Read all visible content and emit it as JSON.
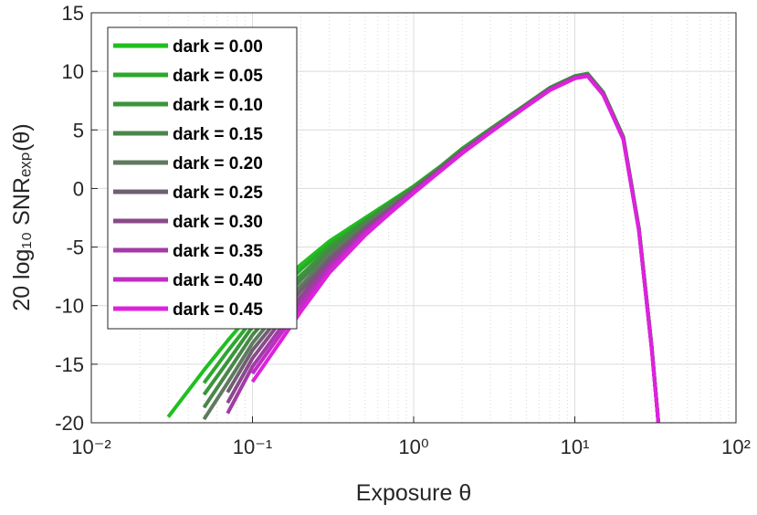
{
  "chart_data": {
    "type": "line",
    "x_label": "Exposure θ",
    "y_label": "20 log₁₀ SNRₑₓₚ(θ)",
    "x": [
      0.03,
      0.05,
      0.07,
      0.1,
      0.15,
      0.2,
      0.3,
      0.5,
      0.7,
      1,
      1.5,
      2,
      3,
      5,
      7,
      10,
      12,
      15,
      20,
      25,
      30,
      33
    ],
    "series": [
      {
        "name": "dark = 0.00",
        "color": "#1fbf1f",
        "values": [
          -19.5,
          -15.5,
          -13,
          -10.5,
          -8,
          -6.5,
          -4.5,
          -2.5,
          -1.2,
          0.2,
          2,
          3.4,
          5.1,
          7.2,
          8.6,
          9.6,
          9.8,
          8.2,
          4.4,
          -3.4,
          -13.5,
          -20
        ]
      },
      {
        "name": "dark = 0.05",
        "color": "#2ca82c",
        "values": [
          null,
          -16.6,
          -13.9,
          -11.2,
          -8.6,
          -6.9,
          -4.8,
          -2.7,
          -1.3,
          0.1,
          2,
          3.4,
          5.1,
          7.2,
          8.6,
          9.6,
          9.8,
          8.2,
          4.4,
          -3.4,
          -13.5,
          -20
        ]
      },
      {
        "name": "dark = 0.10",
        "color": "#3a953a",
        "values": [
          null,
          -17.6,
          -14.8,
          -11.8,
          -9.1,
          -7.4,
          -5.1,
          -2.8,
          -1.4,
          0.1,
          1.9,
          3.3,
          5,
          7.2,
          8.6,
          9.6,
          9.8,
          8.2,
          4.4,
          -3.4,
          -13.5,
          -20
        ]
      },
      {
        "name": "dark = 0.15",
        "color": "#4a864a",
        "values": [
          null,
          -18.7,
          -15.7,
          -12.5,
          -9.7,
          -7.8,
          -5.4,
          -3,
          -1.5,
          0,
          1.9,
          3.3,
          5,
          7.1,
          8.5,
          9.5,
          9.7,
          8.1,
          4.3,
          -3.5,
          -13.6,
          -20
        ]
      },
      {
        "name": "dark = 0.20",
        "color": "#5f7a5f",
        "values": [
          null,
          -19.7,
          -16.6,
          -13.2,
          -10.2,
          -8.3,
          -5.7,
          -3.2,
          -1.6,
          -0.1,
          1.8,
          3.2,
          5,
          7.1,
          8.5,
          9.5,
          9.7,
          8.1,
          4.3,
          -3.5,
          -13.6,
          -20
        ]
      },
      {
        "name": "dark = 0.25",
        "color": "#6f5f72",
        "values": [
          null,
          null,
          -17.4,
          -13.8,
          -10.8,
          -8.7,
          -6,
          -3.3,
          -1.8,
          -0.1,
          1.8,
          3.2,
          4.9,
          7.1,
          8.5,
          9.5,
          9.7,
          8.1,
          4.3,
          -3.5,
          -13.6,
          -20
        ]
      },
      {
        "name": "dark = 0.30",
        "color": "#8a4a8a",
        "values": [
          null,
          null,
          -18.3,
          -14.5,
          -11.3,
          -9.2,
          -6.3,
          -3.5,
          -1.9,
          -0.2,
          1.7,
          3.1,
          4.9,
          7.1,
          8.5,
          9.5,
          9.7,
          8.1,
          4.3,
          -3.5,
          -13.6,
          -20
        ]
      },
      {
        "name": "dark = 0.35",
        "color": "#a33aa8",
        "values": [
          null,
          null,
          -19.2,
          -15.2,
          -11.9,
          -9.6,
          -6.6,
          -3.7,
          -2,
          -0.3,
          1.7,
          3.1,
          4.9,
          7,
          8.4,
          9.4,
          9.6,
          8,
          4.2,
          -3.6,
          -13.7,
          -20
        ]
      },
      {
        "name": "dark = 0.40",
        "color": "#c02cc4",
        "values": [
          null,
          null,
          null,
          -15.8,
          -12.4,
          -10.1,
          -6.9,
          -3.8,
          -2.1,
          -0.3,
          1.6,
          3,
          4.8,
          7,
          8.4,
          9.4,
          9.6,
          8,
          4.2,
          -3.6,
          -13.7,
          -20
        ]
      },
      {
        "name": "dark = 0.45",
        "color": "#dd22dd",
        "values": [
          null,
          null,
          null,
          -16.5,
          -13,
          -10.5,
          -7.2,
          -4,
          -2.2,
          -0.4,
          1.6,
          3,
          4.8,
          7,
          8.4,
          9.4,
          9.6,
          8,
          4.2,
          -3.6,
          -13.7,
          -20
        ]
      }
    ],
    "xlim": [
      0.01,
      100
    ],
    "x_log": true,
    "xticks": [
      {
        "value": 0.01,
        "label": "10⁻²"
      },
      {
        "value": 0.1,
        "label": "10⁻¹"
      },
      {
        "value": 1,
        "label": "10⁰"
      },
      {
        "value": 10,
        "label": "10¹"
      },
      {
        "value": 100,
        "label": "10²"
      }
    ],
    "ylim": [
      -20,
      15
    ],
    "yticks": [
      -20,
      -15,
      -10,
      -5,
      0,
      5,
      10,
      15
    ],
    "grid": true,
    "legend": "upper left"
  }
}
